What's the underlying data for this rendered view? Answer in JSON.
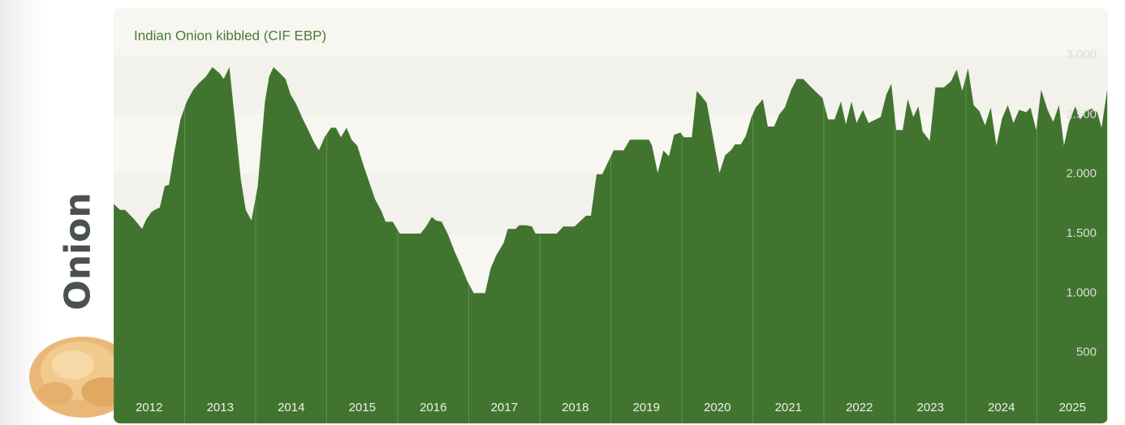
{
  "sidebar": {
    "label": "Onion"
  },
  "chart_data": {
    "type": "area",
    "title": "Indian Onion kibbled (CIF EBP)",
    "color": "#41752f",
    "x": [
      2012.0,
      2012.09,
      2012.16,
      2012.29,
      2012.4,
      2012.46,
      2012.53,
      2012.58,
      2012.65,
      2012.72,
      2012.78,
      2012.85,
      2012.94,
      2013.03,
      2013.12,
      2013.21,
      2013.3,
      2013.39,
      2013.49,
      2013.55,
      2013.63,
      2013.71,
      2013.79,
      2013.86,
      2013.94,
      2014.03,
      2014.13,
      2014.19,
      2014.25,
      2014.34,
      2014.42,
      2014.49,
      2014.57,
      2014.65,
      2014.74,
      2014.82,
      2014.89,
      2014.97,
      2015.06,
      2015.13,
      2015.2,
      2015.28,
      2015.35,
      2015.43,
      2015.52,
      2015.6,
      2015.68,
      2015.77,
      2015.83,
      2015.93,
      2016.03,
      2016.11,
      2016.25,
      2016.32,
      2016.4,
      2016.48,
      2016.54,
      2016.62,
      2016.71,
      2016.8,
      2016.89,
      2016.98,
      2017.07,
      2017.23,
      2017.31,
      2017.39,
      2017.49,
      2017.55,
      2017.66,
      2017.71,
      2017.81,
      2017.89,
      2017.94,
      2018.24,
      2018.33,
      2018.49,
      2018.58,
      2018.65,
      2018.72,
      2018.8,
      2018.88,
      2019.04,
      2019.18,
      2019.27,
      2019.54,
      2019.58,
      2019.66,
      2019.74,
      2019.82,
      2019.89,
      2019.98,
      2020.03,
      2020.14,
      2020.21,
      2020.27,
      2020.35,
      2020.43,
      2020.53,
      2020.61,
      2020.69,
      2020.75,
      2020.83,
      2020.9,
      2020.98,
      2021.04,
      2021.14,
      2021.21,
      2021.3,
      2021.37,
      2021.45,
      2021.54,
      2021.62,
      2021.71,
      2021.79,
      2021.89,
      2021.98,
      2022.06,
      2022.15,
      2022.24,
      2022.31,
      2022.39,
      2022.46,
      2022.55,
      2022.63,
      2022.8,
      2022.88,
      2022.95,
      2023.02,
      2023.11,
      2023.18,
      2023.26,
      2023.33,
      2023.39,
      2023.49,
      2023.57,
      2023.69,
      2023.79,
      2023.87,
      2023.95,
      2024.03,
      2024.11,
      2024.19,
      2024.27,
      2024.35,
      2024.43,
      2024.51,
      2024.59,
      2024.67,
      2024.75,
      2024.85,
      2024.91,
      2024.99,
      2025.06,
      2025.15,
      2025.23,
      2025.31,
      2025.38,
      2025.45,
      2025.54,
      2025.61,
      2025.69,
      2025.77,
      2025.85,
      2025.91,
      2025.99
    ],
    "values": [
      1750,
      1700,
      1700,
      1620,
      1540,
      1620,
      1680,
      1700,
      1720,
      1900,
      1910,
      2170,
      2460,
      2610,
      2710,
      2770,
      2820,
      2900,
      2850,
      2800,
      2900,
      2440,
      1960,
      1700,
      1610,
      1900,
      2610,
      2820,
      2900,
      2850,
      2800,
      2670,
      2590,
      2480,
      2370,
      2270,
      2200,
      2310,
      2390,
      2390,
      2310,
      2390,
      2290,
      2240,
      2070,
      1930,
      1790,
      1690,
      1600,
      1600,
      1500,
      1500,
      1500,
      1500,
      1560,
      1640,
      1610,
      1600,
      1490,
      1350,
      1230,
      1100,
      1000,
      1000,
      1210,
      1320,
      1420,
      1540,
      1540,
      1570,
      1570,
      1560,
      1500,
      1500,
      1560,
      1560,
      1610,
      1650,
      1650,
      2000,
      2000,
      2200,
      2200,
      2290,
      2290,
      2240,
      2010,
      2200,
      2150,
      2330,
      2350,
      2310,
      2310,
      2700,
      2660,
      2600,
      2340,
      2010,
      2160,
      2200,
      2250,
      2250,
      2320,
      2480,
      2560,
      2630,
      2400,
      2400,
      2500,
      2560,
      2710,
      2800,
      2800,
      2750,
      2690,
      2640,
      2460,
      2460,
      2610,
      2420,
      2610,
      2430,
      2540,
      2430,
      2480,
      2670,
      2760,
      2370,
      2370,
      2630,
      2480,
      2570,
      2360,
      2280,
      2730,
      2730,
      2780,
      2880,
      2700,
      2890,
      2580,
      2530,
      2410,
      2560,
      2240,
      2470,
      2580,
      2430,
      2540,
      2520,
      2560,
      2370,
      2710,
      2540,
      2440,
      2580,
      2240,
      2430,
      2570,
      2460,
      2530,
      2550,
      2520,
      2390,
      2710
    ],
    "xlim": [
      2012,
      2026
    ],
    "xticks": [
      2012,
      2013,
      2014,
      2015,
      2016,
      2017,
      2018,
      2019,
      2020,
      2021,
      2022,
      2023,
      2024,
      2025
    ],
    "ylim": [
      0,
      3400
    ],
    "yticks": [
      500,
      {
        "value": 1000,
        "label": "1.000"
      },
      {
        "value": 1500,
        "label": "1.500"
      },
      {
        "value": 2000,
        "label": "2.000"
      },
      {
        "value": 2500,
        "label": "2.500"
      },
      {
        "value": 3000,
        "label": "3.000"
      }
    ],
    "grid": true
  }
}
